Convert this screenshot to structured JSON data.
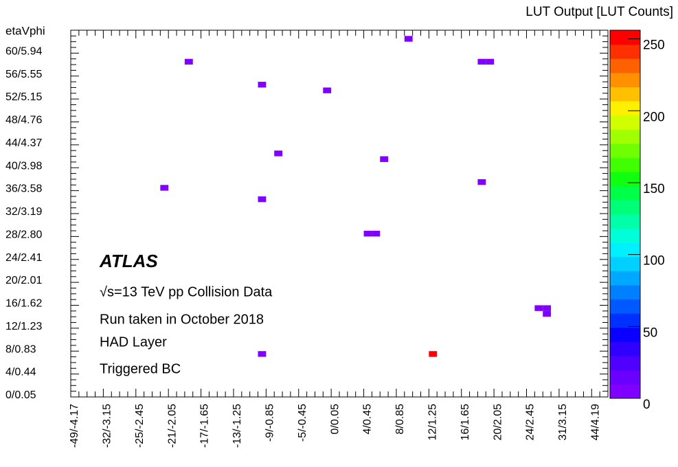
{
  "chart_data": {
    "type": "heatmap",
    "y_axis_title": "etaVphi",
    "colorbar_title": "LUT Output [LUT Counts]",
    "annotations": [
      "ATLAS",
      "√s=13 TeV pp Collision Data",
      "Run taken in October 2018",
      "HAD Layer",
      "Triggered BC"
    ],
    "x_categories": [
      "-49/-4.17",
      null,
      null,
      null,
      "-32/-3.15",
      null,
      null,
      null,
      "-25/-2.45",
      null,
      null,
      null,
      "-21/-2.05",
      null,
      null,
      null,
      "-17/-1.65",
      null,
      null,
      null,
      "-13/-1.25",
      null,
      null,
      null,
      "-9/-0.85",
      null,
      null,
      null,
      "-5/-0.45",
      null,
      null,
      null,
      "0/0.05",
      null,
      null,
      null,
      "4/0.45",
      null,
      null,
      null,
      "8/0.85",
      null,
      null,
      null,
      "12/1.25",
      null,
      null,
      null,
      "16/1.65",
      null,
      null,
      null,
      "20/2.05",
      null,
      null,
      null,
      "24/2.45",
      null,
      null,
      null,
      "31/3.15",
      null,
      null,
      null,
      "44/4.19",
      null
    ],
    "y_categories": [
      "0/0.05",
      null,
      null,
      null,
      "4/0.44",
      null,
      null,
      null,
      "8/0.83",
      null,
      null,
      null,
      "12/1.23",
      null,
      null,
      null,
      "16/1.62",
      null,
      null,
      null,
      "20/2.01",
      null,
      null,
      null,
      "24/2.41",
      null,
      null,
      null,
      "28/2.80",
      null,
      null,
      null,
      "32/3.19",
      null,
      null,
      null,
      "36/3.58",
      null,
      null,
      null,
      "40/3.98",
      null,
      null,
      null,
      "44/4.37",
      null,
      null,
      null,
      "48/4.76",
      null,
      null,
      null,
      "52/5.15",
      null,
      null,
      null,
      "56/5.55",
      null,
      null,
      null,
      "60/5.94",
      null,
      null,
      null
    ],
    "cells": [
      {
        "x": 41,
        "y": 62,
        "value": 5
      },
      {
        "x": 14,
        "y": 58,
        "value": 5
      },
      {
        "x": 50,
        "y": 58,
        "value": 5
      },
      {
        "x": 51,
        "y": 58,
        "value": 5
      },
      {
        "x": 23,
        "y": 54,
        "value": 5
      },
      {
        "x": 31,
        "y": 53,
        "value": 5
      },
      {
        "x": 25,
        "y": 42,
        "value": 5
      },
      {
        "x": 38,
        "y": 41,
        "value": 5
      },
      {
        "x": 50,
        "y": 37,
        "value": 5
      },
      {
        "x": 11,
        "y": 36,
        "value": 5
      },
      {
        "x": 23,
        "y": 34,
        "value": 5
      },
      {
        "x": 36,
        "y": 28,
        "value": 5
      },
      {
        "x": 37,
        "y": 28,
        "value": 5
      },
      {
        "x": 57,
        "y": 15,
        "value": 5
      },
      {
        "x": 58,
        "y": 15,
        "value": 5
      },
      {
        "x": 58,
        "y": 14,
        "value": 5
      },
      {
        "x": 23,
        "y": 7,
        "value": 5
      },
      {
        "x": 44,
        "y": 7,
        "value": 250
      }
    ],
    "zlim": [
      0,
      256
    ],
    "zticks": [
      0,
      50,
      100,
      150,
      200,
      250
    ],
    "palette": [
      "#7f00ff",
      "#6a00ff",
      "#5000ff",
      "#3000ff",
      "#0a00ff",
      "#0030ff",
      "#0058ff",
      "#0080ff",
      "#00a8ff",
      "#00d0ff",
      "#00f0ff",
      "#00ffd8",
      "#00ffa8",
      "#00ff78",
      "#00ff48",
      "#10ff10",
      "#40ff00",
      "#70ff00",
      "#a0ff00",
      "#d0ff00",
      "#fff000",
      "#ffc000",
      "#ff9000",
      "#ff6000",
      "#ff3000",
      "#ff0000"
    ]
  }
}
